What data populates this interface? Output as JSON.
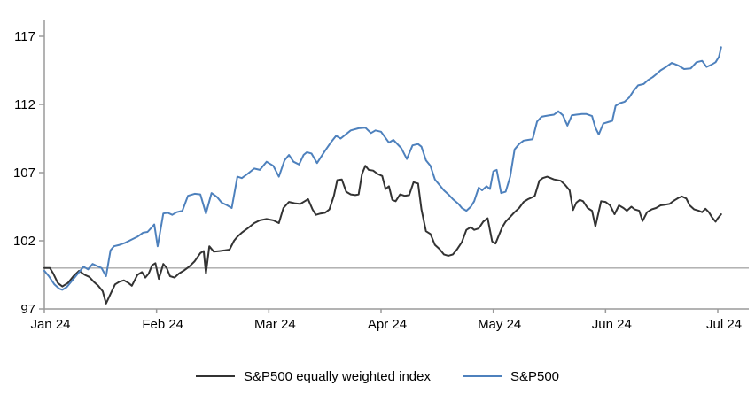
{
  "chart_data": {
    "type": "line",
    "title": "",
    "xlabel": "",
    "ylabel": "",
    "x_unit": "months-since-start",
    "x_tick_labels": [
      "Jan 24",
      "Feb 24",
      "Mar 24",
      "Apr 24",
      "May 24",
      "Jun 24",
      "Jul 24"
    ],
    "x_tick_positions": [
      0,
      1,
      2,
      3,
      4,
      5,
      6
    ],
    "y_ticks": [
      97,
      102,
      107,
      112,
      117
    ],
    "ylim": [
      97,
      117
    ],
    "xlim": [
      0,
      6.28
    ],
    "grid": false,
    "reference_line_y": 100,
    "legend_position": "bottom-center",
    "colors": {
      "sp500_equal_weight": "#333333",
      "sp500": "#4e81bd",
      "axis": "#9a9a9a",
      "reference_line": "#a8a8a8",
      "text": "#000000"
    },
    "series": [
      {
        "name": "S&P500 equally weighted index",
        "color_key": "sp500_equal_weight",
        "points": [
          [
            0.0,
            100.0
          ],
          [
            0.05,
            100.0
          ],
          [
            0.08,
            99.6
          ],
          [
            0.12,
            98.9
          ],
          [
            0.16,
            98.65
          ],
          [
            0.21,
            98.9
          ],
          [
            0.26,
            99.4
          ],
          [
            0.31,
            99.8
          ],
          [
            0.36,
            99.5
          ],
          [
            0.4,
            99.35
          ],
          [
            0.44,
            99.0
          ],
          [
            0.48,
            98.7
          ],
          [
            0.52,
            98.3
          ],
          [
            0.55,
            97.4
          ],
          [
            0.59,
            98.1
          ],
          [
            0.63,
            98.8
          ],
          [
            0.67,
            99.0
          ],
          [
            0.71,
            99.1
          ],
          [
            0.75,
            98.9
          ],
          [
            0.78,
            98.7
          ],
          [
            0.83,
            99.5
          ],
          [
            0.87,
            99.7
          ],
          [
            0.9,
            99.3
          ],
          [
            0.93,
            99.6
          ],
          [
            0.96,
            100.2
          ],
          [
            0.99,
            100.35
          ],
          [
            1.02,
            99.2
          ],
          [
            1.06,
            100.3
          ],
          [
            1.09,
            100.0
          ],
          [
            1.12,
            99.4
          ],
          [
            1.16,
            99.3
          ],
          [
            1.2,
            99.6
          ],
          [
            1.24,
            99.8
          ],
          [
            1.29,
            100.1
          ],
          [
            1.34,
            100.5
          ],
          [
            1.39,
            101.1
          ],
          [
            1.42,
            101.25
          ],
          [
            1.44,
            99.6
          ],
          [
            1.47,
            101.6
          ],
          [
            1.51,
            101.2
          ],
          [
            1.56,
            101.25
          ],
          [
            1.61,
            101.3
          ],
          [
            1.65,
            101.35
          ],
          [
            1.69,
            102.0
          ],
          [
            1.72,
            102.3
          ],
          [
            1.76,
            102.6
          ],
          [
            1.81,
            102.9
          ],
          [
            1.87,
            103.3
          ],
          [
            1.92,
            103.5
          ],
          [
            1.98,
            103.6
          ],
          [
            2.04,
            103.5
          ],
          [
            2.09,
            103.3
          ],
          [
            2.13,
            104.4
          ],
          [
            2.18,
            104.85
          ],
          [
            2.23,
            104.75
          ],
          [
            2.28,
            104.7
          ],
          [
            2.32,
            104.9
          ],
          [
            2.35,
            105.05
          ],
          [
            2.39,
            104.3
          ],
          [
            2.42,
            103.9
          ],
          [
            2.46,
            104.0
          ],
          [
            2.5,
            104.05
          ],
          [
            2.54,
            104.3
          ],
          [
            2.58,
            105.3
          ],
          [
            2.61,
            106.45
          ],
          [
            2.65,
            106.5
          ],
          [
            2.69,
            105.6
          ],
          [
            2.73,
            105.4
          ],
          [
            2.77,
            105.35
          ],
          [
            2.8,
            105.4
          ],
          [
            2.83,
            106.9
          ],
          [
            2.86,
            107.5
          ],
          [
            2.89,
            107.2
          ],
          [
            2.93,
            107.15
          ],
          [
            2.97,
            106.9
          ],
          [
            3.01,
            106.75
          ],
          [
            3.04,
            105.8
          ],
          [
            3.07,
            106.0
          ],
          [
            3.1,
            105.0
          ],
          [
            3.13,
            104.9
          ],
          [
            3.17,
            105.4
          ],
          [
            3.21,
            105.3
          ],
          [
            3.25,
            105.35
          ],
          [
            3.29,
            106.3
          ],
          [
            3.33,
            106.2
          ],
          [
            3.36,
            104.3
          ],
          [
            3.4,
            102.7
          ],
          [
            3.44,
            102.5
          ],
          [
            3.48,
            101.7
          ],
          [
            3.52,
            101.4
          ],
          [
            3.56,
            101.0
          ],
          [
            3.6,
            100.9
          ],
          [
            3.64,
            101.0
          ],
          [
            3.68,
            101.4
          ],
          [
            3.72,
            101.9
          ],
          [
            3.76,
            102.8
          ],
          [
            3.8,
            103.0
          ],
          [
            3.83,
            102.8
          ],
          [
            3.87,
            102.9
          ],
          [
            3.91,
            103.4
          ],
          [
            3.95,
            103.65
          ],
          [
            3.99,
            101.95
          ],
          [
            4.02,
            101.8
          ],
          [
            4.05,
            102.4
          ],
          [
            4.08,
            103.0
          ],
          [
            4.11,
            103.4
          ],
          [
            4.15,
            103.75
          ],
          [
            4.19,
            104.1
          ],
          [
            4.23,
            104.4
          ],
          [
            4.27,
            104.85
          ],
          [
            4.31,
            105.05
          ],
          [
            4.35,
            105.2
          ],
          [
            4.37,
            105.3
          ],
          [
            4.41,
            106.4
          ],
          [
            4.44,
            106.6
          ],
          [
            4.48,
            106.7
          ],
          [
            4.54,
            106.5
          ],
          [
            4.6,
            106.4
          ],
          [
            4.64,
            106.1
          ],
          [
            4.68,
            105.7
          ],
          [
            4.71,
            104.25
          ],
          [
            4.74,
            104.8
          ],
          [
            4.77,
            105.0
          ],
          [
            4.8,
            104.9
          ],
          [
            4.84,
            104.4
          ],
          [
            4.88,
            104.2
          ],
          [
            4.91,
            103.05
          ],
          [
            4.96,
            104.9
          ],
          [
            5.0,
            104.85
          ],
          [
            5.04,
            104.6
          ],
          [
            5.08,
            103.95
          ],
          [
            5.12,
            104.6
          ],
          [
            5.16,
            104.4
          ],
          [
            5.19,
            104.2
          ],
          [
            5.23,
            104.5
          ],
          [
            5.26,
            104.3
          ],
          [
            5.3,
            104.2
          ],
          [
            5.33,
            103.45
          ],
          [
            5.37,
            104.1
          ],
          [
            5.41,
            104.3
          ],
          [
            5.45,
            104.4
          ],
          [
            5.49,
            104.6
          ],
          [
            5.53,
            104.65
          ],
          [
            5.57,
            104.7
          ],
          [
            5.61,
            104.95
          ],
          [
            5.65,
            105.15
          ],
          [
            5.68,
            105.25
          ],
          [
            5.72,
            105.1
          ],
          [
            5.75,
            104.6
          ],
          [
            5.79,
            104.3
          ],
          [
            5.83,
            104.2
          ],
          [
            5.86,
            104.1
          ],
          [
            5.89,
            104.35
          ],
          [
            5.92,
            104.1
          ],
          [
            5.95,
            103.7
          ],
          [
            5.98,
            103.4
          ],
          [
            6.0,
            103.65
          ],
          [
            6.03,
            103.95
          ]
        ]
      },
      {
        "name": "S&P500",
        "color_key": "sp500",
        "points": [
          [
            0.0,
            99.8
          ],
          [
            0.04,
            99.4
          ],
          [
            0.09,
            98.8
          ],
          [
            0.13,
            98.5
          ],
          [
            0.16,
            98.4
          ],
          [
            0.2,
            98.6
          ],
          [
            0.26,
            99.2
          ],
          [
            0.31,
            99.7
          ],
          [
            0.35,
            100.1
          ],
          [
            0.39,
            99.9
          ],
          [
            0.43,
            100.3
          ],
          [
            0.47,
            100.15
          ],
          [
            0.51,
            100.0
          ],
          [
            0.53,
            99.7
          ],
          [
            0.55,
            99.4
          ],
          [
            0.59,
            101.3
          ],
          [
            0.62,
            101.6
          ],
          [
            0.67,
            101.7
          ],
          [
            0.72,
            101.85
          ],
          [
            0.78,
            102.1
          ],
          [
            0.83,
            102.3
          ],
          [
            0.88,
            102.6
          ],
          [
            0.92,
            102.65
          ],
          [
            0.96,
            103.0
          ],
          [
            0.98,
            103.2
          ],
          [
            1.01,
            101.6
          ],
          [
            1.06,
            104.0
          ],
          [
            1.1,
            104.05
          ],
          [
            1.14,
            103.9
          ],
          [
            1.18,
            104.1
          ],
          [
            1.23,
            104.2
          ],
          [
            1.28,
            105.3
          ],
          [
            1.34,
            105.45
          ],
          [
            1.39,
            105.4
          ],
          [
            1.44,
            104.0
          ],
          [
            1.49,
            105.5
          ],
          [
            1.54,
            105.2
          ],
          [
            1.58,
            104.8
          ],
          [
            1.63,
            104.6
          ],
          [
            1.67,
            104.4
          ],
          [
            1.72,
            106.7
          ],
          [
            1.76,
            106.6
          ],
          [
            1.81,
            106.9
          ],
          [
            1.87,
            107.3
          ],
          [
            1.92,
            107.2
          ],
          [
            1.98,
            107.8
          ],
          [
            2.04,
            107.5
          ],
          [
            2.09,
            106.7
          ],
          [
            2.14,
            107.9
          ],
          [
            2.18,
            108.3
          ],
          [
            2.22,
            107.8
          ],
          [
            2.27,
            107.6
          ],
          [
            2.31,
            108.3
          ],
          [
            2.34,
            108.5
          ],
          [
            2.38,
            108.4
          ],
          [
            2.43,
            107.7
          ],
          [
            2.5,
            108.6
          ],
          [
            2.56,
            109.3
          ],
          [
            2.6,
            109.7
          ],
          [
            2.64,
            109.5
          ],
          [
            2.73,
            110.1
          ],
          [
            2.8,
            110.25
          ],
          [
            2.86,
            110.3
          ],
          [
            2.91,
            109.9
          ],
          [
            2.95,
            110.1
          ],
          [
            3.0,
            110.0
          ],
          [
            3.07,
            109.2
          ],
          [
            3.11,
            109.4
          ],
          [
            3.18,
            108.8
          ],
          [
            3.23,
            108.0
          ],
          [
            3.28,
            109.0
          ],
          [
            3.33,
            109.1
          ],
          [
            3.36,
            108.9
          ],
          [
            3.4,
            107.9
          ],
          [
            3.44,
            107.5
          ],
          [
            3.48,
            106.5
          ],
          [
            3.52,
            106.1
          ],
          [
            3.56,
            105.7
          ],
          [
            3.6,
            105.4
          ],
          [
            3.64,
            105.05
          ],
          [
            3.69,
            104.7
          ],
          [
            3.72,
            104.4
          ],
          [
            3.76,
            104.2
          ],
          [
            3.8,
            104.5
          ],
          [
            3.83,
            104.9
          ],
          [
            3.87,
            105.9
          ],
          [
            3.9,
            105.7
          ],
          [
            3.94,
            106.0
          ],
          [
            3.97,
            105.8
          ],
          [
            4.0,
            107.1
          ],
          [
            4.03,
            107.2
          ],
          [
            4.07,
            105.5
          ],
          [
            4.11,
            105.6
          ],
          [
            4.15,
            106.7
          ],
          [
            4.19,
            108.7
          ],
          [
            4.23,
            109.1
          ],
          [
            4.27,
            109.35
          ],
          [
            4.31,
            109.4
          ],
          [
            4.35,
            109.45
          ],
          [
            4.39,
            110.75
          ],
          [
            4.43,
            111.1
          ],
          [
            4.46,
            111.15
          ],
          [
            4.5,
            111.2
          ],
          [
            4.54,
            111.25
          ],
          [
            4.58,
            111.5
          ],
          [
            4.62,
            111.2
          ],
          [
            4.66,
            110.45
          ],
          [
            4.7,
            111.2
          ],
          [
            4.74,
            111.25
          ],
          [
            4.79,
            111.3
          ],
          [
            4.83,
            111.3
          ],
          [
            4.88,
            111.15
          ],
          [
            4.91,
            110.3
          ],
          [
            4.94,
            109.8
          ],
          [
            4.98,
            110.6
          ],
          [
            5.02,
            110.7
          ],
          [
            5.06,
            110.8
          ],
          [
            5.09,
            111.9
          ],
          [
            5.13,
            112.1
          ],
          [
            5.17,
            112.2
          ],
          [
            5.21,
            112.5
          ],
          [
            5.25,
            113.0
          ],
          [
            5.29,
            113.4
          ],
          [
            5.34,
            113.5
          ],
          [
            5.38,
            113.8
          ],
          [
            5.42,
            114.0
          ],
          [
            5.45,
            114.2
          ],
          [
            5.49,
            114.5
          ],
          [
            5.53,
            114.7
          ],
          [
            5.59,
            115.05
          ],
          [
            5.65,
            114.85
          ],
          [
            5.7,
            114.6
          ],
          [
            5.76,
            114.65
          ],
          [
            5.81,
            115.1
          ],
          [
            5.86,
            115.2
          ],
          [
            5.9,
            114.75
          ],
          [
            5.94,
            114.9
          ],
          [
            5.98,
            115.1
          ],
          [
            6.01,
            115.5
          ],
          [
            6.03,
            116.2
          ]
        ]
      }
    ],
    "legend": [
      {
        "label": "S&P500 equally weighted index",
        "color_key": "sp500_equal_weight"
      },
      {
        "label": "S&P500",
        "color_key": "sp500"
      }
    ]
  }
}
